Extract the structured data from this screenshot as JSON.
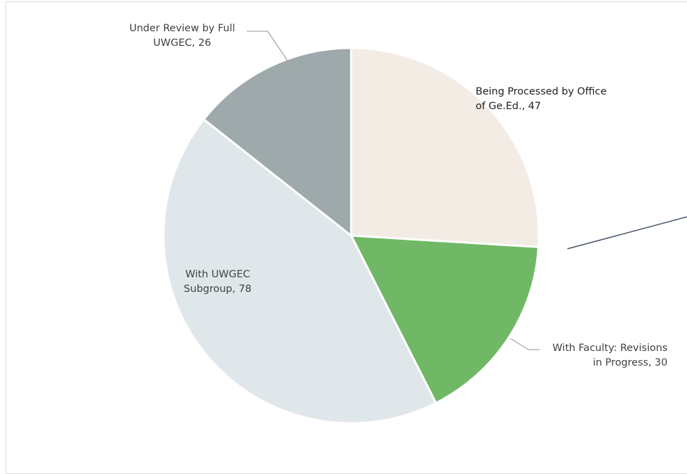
{
  "chart_data": {
    "type": "pie",
    "slices": [
      {
        "name": "Being Processed by Office of Ge.Ed.",
        "value": 47,
        "color": "#f2ece4",
        "label_lines": [
          "Being Processed by Office",
          "of Ge.Ed., 47"
        ]
      },
      {
        "name": "With Faculty: Revisions in Progress",
        "value": 30,
        "color": "#70b865",
        "label_lines": [
          "With Faculty: Revisions",
          "in Progress, 30"
        ]
      },
      {
        "name": "With UWGEC Subgroup",
        "value": 78,
        "color": "#e0e7ea",
        "label_lines": [
          "With UWGEC",
          "Subgroup, 78"
        ]
      },
      {
        "name": "Under Review by Full UWGEC",
        "value": 26,
        "color": "#9ea9ab",
        "label_lines": [
          "Under Review by Full",
          "UWGEC, 26"
        ]
      }
    ],
    "start_angle": "12 o'clock",
    "direction": "clockwise"
  }
}
